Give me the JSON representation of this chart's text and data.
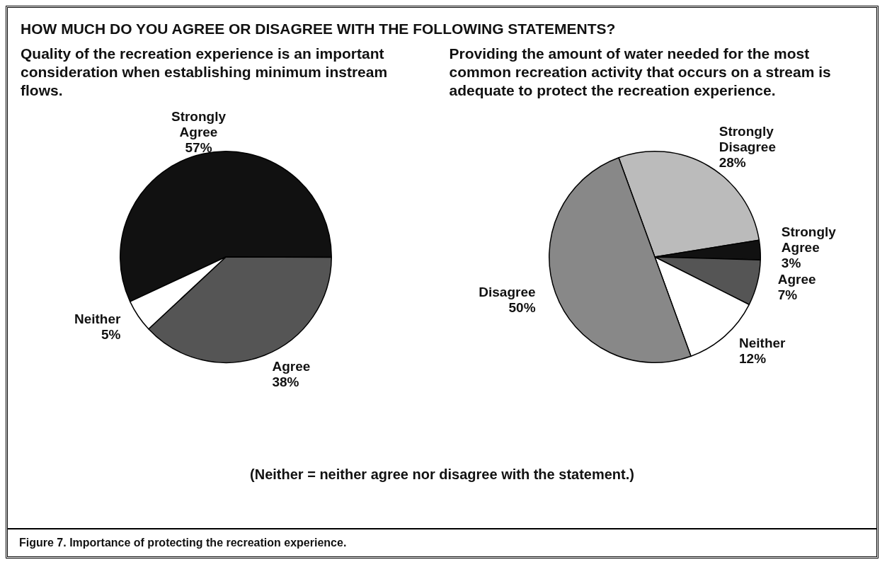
{
  "chart_data": [
    {
      "type": "pie",
      "title": "HOW MUCH DO YOU AGREE OR DISAGREE WITH THE FOLLOWING STATEMENTS?",
      "subtitle": "Quality of the recreation experience is an important consideration when establishing minimum instream flows.",
      "categories": [
        "Strongly Agree",
        "Agree",
        "Neither"
      ],
      "values": [
        57,
        38,
        5
      ],
      "value_labels": [
        "57%",
        "38%",
        "5%"
      ],
      "colors": [
        "#111111",
        "#555555",
        "#ffffff"
      ],
      "legend": false
    },
    {
      "type": "pie",
      "subtitle": "Providing the amount of water needed for the most common recreation activity that occurs on a stream is adequate to protect the recreation experience.",
      "categories": [
        "Strongly Disagree",
        "Strongly Agree",
        "Agree",
        "Neither",
        "Disagree"
      ],
      "values": [
        28,
        3,
        7,
        12,
        50
      ],
      "value_labels": [
        "28%",
        "3%",
        "7%",
        "12%",
        "50%"
      ],
      "colors": [
        "#bbbbbb",
        "#111111",
        "#555555",
        "#ffffff",
        "#888888"
      ],
      "legend": false,
      "annotations": [
        "(Neither = neither agree nor disagree with the statement.)",
        "Figure 7.  Importance of protecting the recreation experience."
      ]
    }
  ]
}
